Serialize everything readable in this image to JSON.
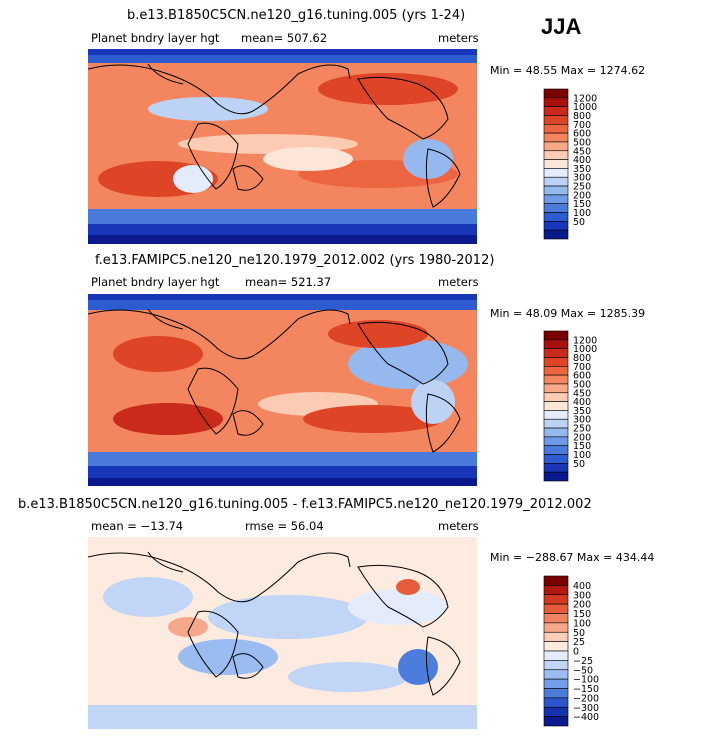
{
  "season": "JJA",
  "colors": {
    "deep_blue": "#0a1a8c",
    "blue": "#2a5bd8",
    "light_blue": "#9ec3f0",
    "pale": "#fde9dc",
    "orange": "#f3734a",
    "red": "#d6301e",
    "dark_red": "#8c0b0b",
    "land_outline": "#000000"
  },
  "panels": [
    {
      "title": "b.e13.B1850C5CN.ne120_g16.tuning.005 (yrs 1-24)",
      "variable": "Planet bndry layer hgt",
      "stat": "mean=  507.62",
      "units": "meters",
      "minmax": "Min =   48.55  Max =  1274.62",
      "colorbar_labels": [
        "1200",
        "1000",
        "800",
        "700",
        "600",
        "500",
        "450",
        "400",
        "350",
        "300",
        "250",
        "200",
        "150",
        "100",
        "50"
      ]
    },
    {
      "title": "f.e13.FAMIPC5.ne120_ne120.1979_2012.002 (yrs 1980-2012)",
      "variable": "Planet bndry layer hgt",
      "stat": "mean=  521.37",
      "units": "meters",
      "minmax": "Min =   48.09  Max =  1285.39",
      "colorbar_labels": [
        "1200",
        "1000",
        "800",
        "700",
        "600",
        "500",
        "450",
        "400",
        "350",
        "300",
        "250",
        "200",
        "150",
        "100",
        "50"
      ]
    },
    {
      "title": "b.e13.B1850C5CN.ne120_g16.tuning.005 - f.e13.FAMIPC5.ne120_ne120.1979_2012.002",
      "variable": "mean =  −13.74",
      "stat": "rmse =   56.04",
      "units": "meters",
      "minmax": "Min = −288.67  Max =  434.44",
      "colorbar_labels": [
        "400",
        "300",
        "200",
        "150",
        "100",
        "50",
        "25",
        "0",
        "−25",
        "−50",
        "−100",
        "−150",
        "−200",
        "−300",
        "−400"
      ]
    }
  ],
  "palettes": {
    "abs": [
      "#7a0000",
      "#a8100c",
      "#c92a1a",
      "#de4527",
      "#ec6440",
      "#f3865f",
      "#f8a988",
      "#fbcbb3",
      "#fde6d8",
      "#e2ecfb",
      "#bcd3f5",
      "#95b9ef",
      "#6d9be6",
      "#4a7bdc",
      "#2d5bd0",
      "#1837b8",
      "#0a1a8c"
    ],
    "diff": [
      "#7a0000",
      "#b01810",
      "#d23a24",
      "#e65c3b",
      "#f08260",
      "#f6a98a",
      "#fbcdb6",
      "#feebe0",
      "#e4ecfb",
      "#c1d5f6",
      "#9bbcf0",
      "#749ee7",
      "#4d7ddc",
      "#2c57cc",
      "#1432ac",
      "#0a1a8c"
    ]
  }
}
